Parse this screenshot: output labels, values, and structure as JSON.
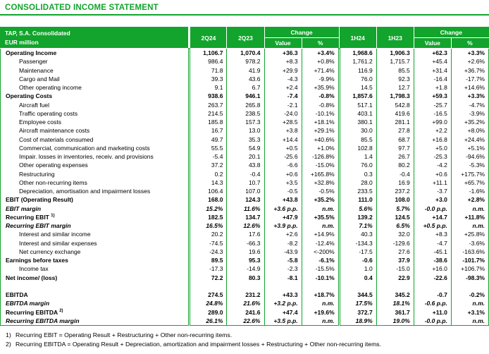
{
  "page_title": "CONSOLIDATED INCOME STATEMENT",
  "colors": {
    "accent_green": "#12a42c",
    "header_text": "#ffffff",
    "body_text": "#000000"
  },
  "table": {
    "header": {
      "title_line1": "TAP, S.A. Consolidated",
      "title_line2": "EUR million",
      "col_2q24": "2Q24",
      "col_2q23": "2Q23",
      "col_1h24": "1H24",
      "col_1h23": "1H23",
      "change_label": "Change",
      "change_sub_value": "Value",
      "change_sub_pct": "%"
    },
    "rows": [
      {
        "label": "Operating Income",
        "style": "bold",
        "values": [
          "1,106.7",
          "1,070.4",
          "+36.3",
          "+3.4%",
          "1,968.6",
          "1,906.3",
          "+62.3",
          "+3.3%"
        ]
      },
      {
        "label": "Passenger",
        "style": "item",
        "values": [
          "986.4",
          "978.2",
          "+8.3",
          "+0.8%",
          "1,761.2",
          "1,715.7",
          "+45.4",
          "+2.6%"
        ]
      },
      {
        "label": "Maintenance",
        "style": "item",
        "values": [
          "71.8",
          "41.9",
          "+29.9",
          "+71.4%",
          "116.9",
          "85.5",
          "+31.4",
          "+36.7%"
        ]
      },
      {
        "label": "Cargo and Mail",
        "style": "item",
        "values": [
          "39.3",
          "43.6",
          "-4.3",
          "-9.9%",
          "76.0",
          "92.3",
          "-16.4",
          "-17.7%"
        ]
      },
      {
        "label": "Other operating income",
        "style": "item",
        "values": [
          "9.1",
          "6.7",
          "+2.4",
          "+35.9%",
          "14.5",
          "12.7",
          "+1.8",
          "+14.6%"
        ]
      },
      {
        "label": "Operating Costs",
        "style": "bold",
        "values": [
          "938.6",
          "946.1",
          "-7.4",
          "-0.8%",
          "1,857.6",
          "1,798.3",
          "+59.3",
          "+3.3%"
        ]
      },
      {
        "label": "Aircraft fuel",
        "style": "item",
        "values": [
          "263.7",
          "265.8",
          "-2.1",
          "-0.8%",
          "517.1",
          "542.8",
          "-25.7",
          "-4.7%"
        ]
      },
      {
        "label": "Traffic operating costs",
        "style": "item",
        "values": [
          "214.5",
          "238.5",
          "-24.0",
          "-10.1%",
          "403.1",
          "419.6",
          "-16.5",
          "-3.9%"
        ]
      },
      {
        "label": "Employee costs",
        "style": "item",
        "values": [
          "185.8",
          "157.3",
          "+28.5",
          "+18.1%",
          "380.1",
          "281.1",
          "+99.0",
          "+35.2%"
        ]
      },
      {
        "label": "Aircraft maintenance costs",
        "style": "item",
        "values": [
          "16.7",
          "13.0",
          "+3.8",
          "+29.1%",
          "30.0",
          "27.8",
          "+2.2",
          "+8.0%"
        ]
      },
      {
        "label": "Cost of materials consumed",
        "style": "item",
        "values": [
          "49.7",
          "35.3",
          "+14.4",
          "+40.6%",
          "85.5",
          "68.7",
          "+16.8",
          "+24.4%"
        ]
      },
      {
        "label": "Commercial, communication and marketing costs",
        "style": "item",
        "values": [
          "55.5",
          "54.9",
          "+0.5",
          "+1.0%",
          "102.8",
          "97.7",
          "+5.0",
          "+5.1%"
        ]
      },
      {
        "label": "Impair. losses in inventories, receiv. and provisions",
        "style": "item",
        "values": [
          "-5.4",
          "20.1",
          "-25.6",
          "-126.8%",
          "1.4",
          "26.7",
          "-25.3",
          "-94.6%"
        ]
      },
      {
        "label": "Other operating expenses",
        "style": "item",
        "values": [
          "37.2",
          "43.8",
          "-6.6",
          "-15.0%",
          "76.0",
          "80.2",
          "-4.2",
          "-5.3%"
        ]
      },
      {
        "label": "Restructuring",
        "style": "item",
        "values": [
          "0.2",
          "-0.4",
          "+0.6",
          "+165.8%",
          "0.3",
          "-0.4",
          "+0.6",
          "+175.7%"
        ]
      },
      {
        "label": "Other non-recurring items",
        "style": "item",
        "values": [
          "14.3",
          "10.7",
          "+3.5",
          "+32.8%",
          "28.0",
          "16.9",
          "+11.1",
          "+65.7%"
        ]
      },
      {
        "label": "Depreciation, amortisation and impairment losses",
        "style": "item",
        "values": [
          "106.4",
          "107.0",
          "-0.5",
          "-0.5%",
          "233.5",
          "237.2",
          "-3.7",
          "-1.6%"
        ]
      },
      {
        "label": "EBIT (Operating Result)",
        "style": "bold",
        "values": [
          "168.0",
          "124.3",
          "+43.8",
          "+35.2%",
          "111.0",
          "108.0",
          "+3.0",
          "+2.8%"
        ]
      },
      {
        "label": "EBIT margin",
        "style": "margin",
        "values": [
          "15.2%",
          "11.6%",
          "+3.6 p.p.",
          "n.m.",
          "5.6%",
          "5.7%",
          "-0.0 p.p.",
          "n.m."
        ]
      },
      {
        "label": "Recurring EBIT ",
        "sup": "1)",
        "style": "bold",
        "values": [
          "182.5",
          "134.7",
          "+47.9",
          "+35.5%",
          "139.2",
          "124.5",
          "+14.7",
          "+11.8%"
        ]
      },
      {
        "label": "Recurring EBIT margin",
        "style": "margin",
        "values": [
          "16.5%",
          "12.6%",
          "+3.9 p.p.",
          "n.m.",
          "7.1%",
          "6.5%",
          "+0.5 p.p.",
          "n.m."
        ]
      },
      {
        "label": "Interest and similar income",
        "style": "item",
        "values": [
          "20.2",
          "17.6",
          "+2.6",
          "+14.9%",
          "40.3",
          "32.0",
          "+8.3",
          "+25.8%"
        ]
      },
      {
        "label": "Interest and similar expenses",
        "style": "item",
        "values": [
          "-74.5",
          "-66.3",
          "-8.2",
          "-12.4%",
          "-134.3",
          "-129.6",
          "-4.7",
          "-3.6%"
        ]
      },
      {
        "label": "Net currency exchange",
        "style": "item",
        "values": [
          "-24.3",
          "19.6",
          "-43.9",
          "<-200%",
          "-17.5",
          "27.6",
          "-45.1",
          "-163.6%"
        ]
      },
      {
        "label": "Earnings before taxes",
        "style": "bold",
        "values": [
          "89.5",
          "95.3",
          "-5.8",
          "-6.1%",
          "-0.6",
          "37.9",
          "-38.6",
          "-101.7%"
        ]
      },
      {
        "label": "Income tax",
        "style": "item",
        "values": [
          "-17.3",
          "-14.9",
          "-2.3",
          "-15.5%",
          "1.0",
          "-15.0",
          "+16.0",
          "+106.7%"
        ]
      },
      {
        "label": "Net income/ (loss)",
        "style": "bold",
        "values": [
          "72.2",
          "80.3",
          "-8.1",
          "-10.1%",
          "0.4",
          "22.9",
          "-22.6",
          "-98.3%"
        ]
      },
      {
        "label": "",
        "style": "blank",
        "values": [
          "",
          "",
          "",
          "",
          "",
          "",
          "",
          ""
        ]
      },
      {
        "label": "EBITDA",
        "style": "bold",
        "values": [
          "274.5",
          "231.2",
          "+43.3",
          "+18.7%",
          "344.5",
          "345.2",
          "-0.7",
          "-0.2%"
        ]
      },
      {
        "label": "EBITDA margin",
        "style": "margin",
        "values": [
          "24.8%",
          "21.6%",
          "+3.2 p.p.",
          "n.m.",
          "17.5%",
          "18.1%",
          "-0.6 p.p.",
          "n.m."
        ]
      },
      {
        "label": "Recurring EBITDA ",
        "sup": "2)",
        "style": "bold",
        "values": [
          "289.0",
          "241.6",
          "+47.4",
          "+19.6%",
          "372.7",
          "361.7",
          "+11.0",
          "+3.1%"
        ]
      },
      {
        "label": "Recurring EBITDA margin",
        "style": "margin",
        "values": [
          "26.1%",
          "22.6%",
          "+3.5 p.p.",
          "n.m.",
          "18.9%",
          "19.0%",
          "-0.0 p.p.",
          "n.m."
        ]
      }
    ]
  },
  "footnotes": [
    {
      "num": "1)",
      "text": "Recurring EBIT = Operating Result + Restructuring + Other non-recurring items."
    },
    {
      "num": "2)",
      "text": "Recurring EBITDA = Operating Result + Depreciation, amortization and impairment losses + Restructuring + Other non-recurring items."
    }
  ]
}
